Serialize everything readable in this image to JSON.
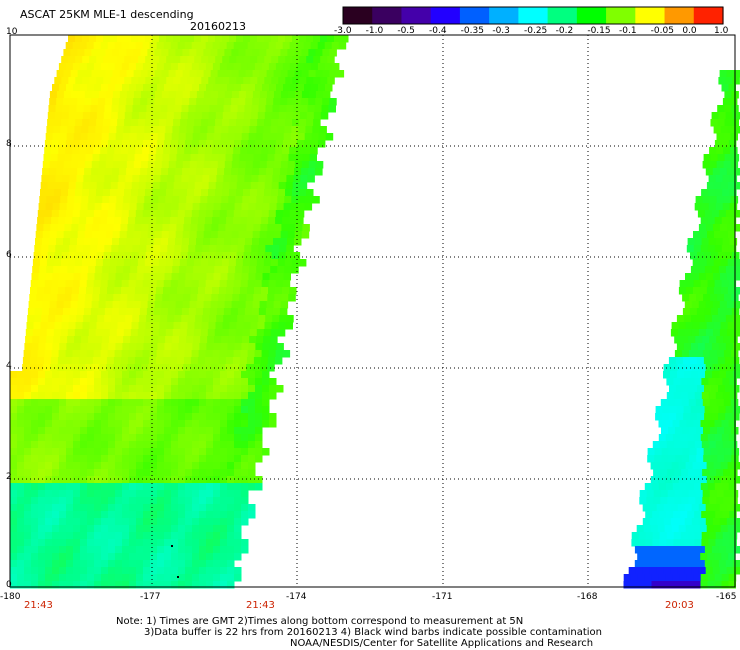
{
  "header": {
    "title": "ASCAT 25KM MLE-1 descending",
    "date": "20160213"
  },
  "colorbar": {
    "ticks": [
      "-3.0",
      "-1.0",
      "-0.5",
      "-0.4",
      "-0.35",
      "-0.3",
      "-0.25",
      "-0.2",
      "-0.15",
      "-0.1",
      "-0.05",
      "0.0",
      "1.0"
    ],
    "colors": [
      "#2a0020",
      "#3a0060",
      "#4400aa",
      "#2200ff",
      "#0060ff",
      "#00b0ff",
      "#00ffff",
      "#00ff80",
      "#00ff00",
      "#80ff00",
      "#ffff00",
      "#ff9900",
      "#ff2200"
    ]
  },
  "axes": {
    "y_labels": [
      "10",
      "8",
      "6",
      "4",
      "2",
      "0"
    ],
    "x_labels": [
      "-180",
      "-177",
      "-174",
      "-171",
      "-168",
      "-165"
    ],
    "time_labels": [
      "21:43",
      "21:43",
      "20:03"
    ]
  },
  "notes": {
    "line1": "Note: 1) Times are GMT 2)Times along bottom correspond to measurement at 5N",
    "line2": "3)Data buffer is 22 hrs from 20160213 4) Black wind barbs indicate possible contamination",
    "line3": "NOAA/NESDIS/Center for Satellite Applications and Research"
  }
}
